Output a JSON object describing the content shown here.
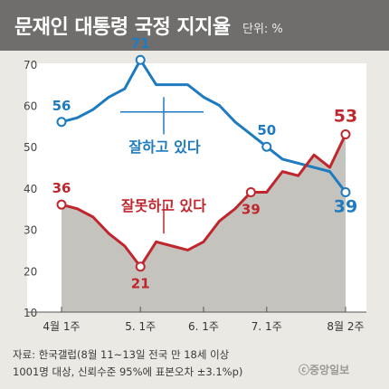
{
  "header": {
    "title": "문재인 대통령 국정 지지율",
    "unit": "단위: %"
  },
  "chart_data": {
    "type": "line",
    "title": "문재인 대통령 국정 지지율",
    "ylim": [
      10,
      75
    ],
    "yticks": [
      10,
      20,
      30,
      40,
      50,
      60,
      70
    ],
    "x": [
      0,
      1,
      2,
      3,
      4,
      5,
      6,
      7,
      8,
      9,
      10,
      11,
      12,
      13,
      14,
      15,
      16,
      17,
      18
    ],
    "xticks": [
      {
        "x": 0,
        "label": "4월 1주"
      },
      {
        "x": 5,
        "label": "5. 1주"
      },
      {
        "x": 9,
        "label": "6. 1주"
      },
      {
        "x": 13,
        "label": "7. 1주"
      },
      {
        "x": 18,
        "label": "8월 2주"
      }
    ],
    "series": [
      {
        "name": "잘하고 있다",
        "color": "#1e7bc0",
        "values": [
          56,
          57,
          59,
          62,
          64,
          71,
          65,
          65,
          65,
          62,
          60,
          56,
          53,
          50,
          47,
          46,
          45,
          44,
          39
        ]
      },
      {
        "name": "잘못하고 있다",
        "color": "#c0262d",
        "values": [
          36,
          35,
          33,
          29,
          26,
          21,
          27,
          26,
          25,
          27,
          32,
          35,
          39,
          39,
          44,
          43,
          48,
          45,
          53
        ]
      }
    ],
    "point_labels": [
      {
        "series": 0,
        "x": 0,
        "text": "56"
      },
      {
        "series": 0,
        "x": 5,
        "text": "71"
      },
      {
        "series": 0,
        "x": 13,
        "text": "50"
      },
      {
        "series": 0,
        "x": 18,
        "text": "39"
      },
      {
        "series": 1,
        "x": 0,
        "text": "36"
      },
      {
        "series": 1,
        "x": 5,
        "text": "21"
      },
      {
        "series": 1,
        "x": 12,
        "text": "39"
      },
      {
        "series": 1,
        "x": 18,
        "text": "53"
      }
    ],
    "fill_color": "#c4c3bd",
    "plot_bg": "#ffffff"
  },
  "source": {
    "line1": "자료: 한국갤럽(8월 11~13일 전국 만 18세 이상",
    "line2": "1001명 대상, 신뢰수준 95%에 표본오차 ±3.1%p)"
  },
  "logo": "ⓒ중앙일보"
}
